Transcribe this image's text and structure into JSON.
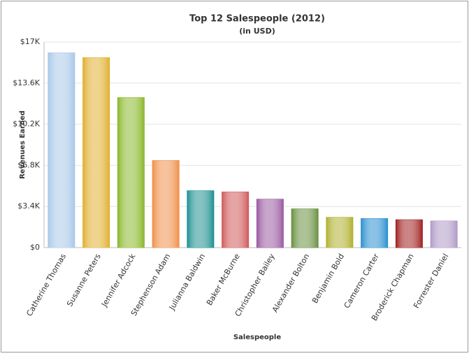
{
  "chart_data": {
    "type": "bar",
    "title": "Top 12 Salespeople (2012)",
    "subtitle": "(in USD)",
    "x_label": "Salespeople",
    "y_label": "Revenues Earned",
    "categories": [
      "Catherine Thomas",
      "Susanne Peters",
      "Jennifer Adcock",
      "Stephenson Adam",
      "Julianna Baldwin",
      "Baker McBurne",
      "Christopher Bailey",
      "Alexander Bolton",
      "Benjamin Bold",
      "Cameron Carter",
      "Broderick Chapman",
      "Forrester Daniel"
    ],
    "values": [
      16100,
      15700,
      12400,
      7200,
      4700,
      4600,
      4000,
      3200,
      2500,
      2400,
      2300,
      2200
    ],
    "colors": [
      "#a8c8e8",
      "#e0b030",
      "#8ab82a",
      "#f0904a",
      "#1f9090",
      "#d05a5a",
      "#9a5aa0",
      "#6a9040",
      "#b0b030",
      "#2a90d0",
      "#a02020",
      "#b09ac8"
    ],
    "ylim": [
      0,
      17000
    ],
    "yticks": [
      {
        "value": 0,
        "label": "$0"
      },
      {
        "value": 3400,
        "label": "$3.4K"
      },
      {
        "value": 6800,
        "label": "$6.8K"
      },
      {
        "value": 10200,
        "label": "$10.2K"
      },
      {
        "value": 13600,
        "label": "$13.6K"
      },
      {
        "value": 17000,
        "label": "$17K"
      }
    ],
    "grid": true
  }
}
